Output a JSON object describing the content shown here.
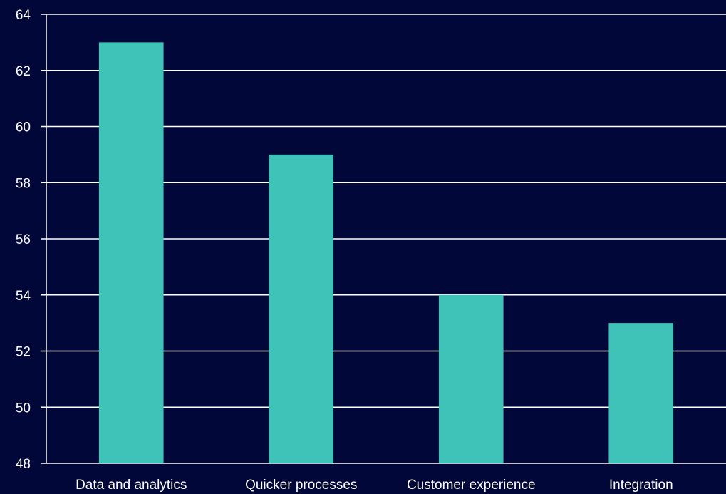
{
  "colors": {
    "background": "#02073a",
    "bar": "#3fc3b9",
    "grid": "#ffffff",
    "text": "#ffffff"
  },
  "chart_data": {
    "type": "bar",
    "title": "",
    "xlabel": "",
    "ylabel": "",
    "categories": [
      "Data and analytics",
      "Quicker processes",
      "Customer experience",
      "Integration"
    ],
    "values": [
      63,
      59,
      54,
      53
    ],
    "ylim": [
      48,
      64
    ],
    "yticks": [
      48,
      50,
      52,
      54,
      56,
      58,
      60,
      62,
      64
    ],
    "ytick_labels": [
      "48",
      "50",
      "52",
      "54",
      "56",
      "58",
      "60",
      "62",
      "64"
    ],
    "grid": true,
    "legend": "none"
  }
}
